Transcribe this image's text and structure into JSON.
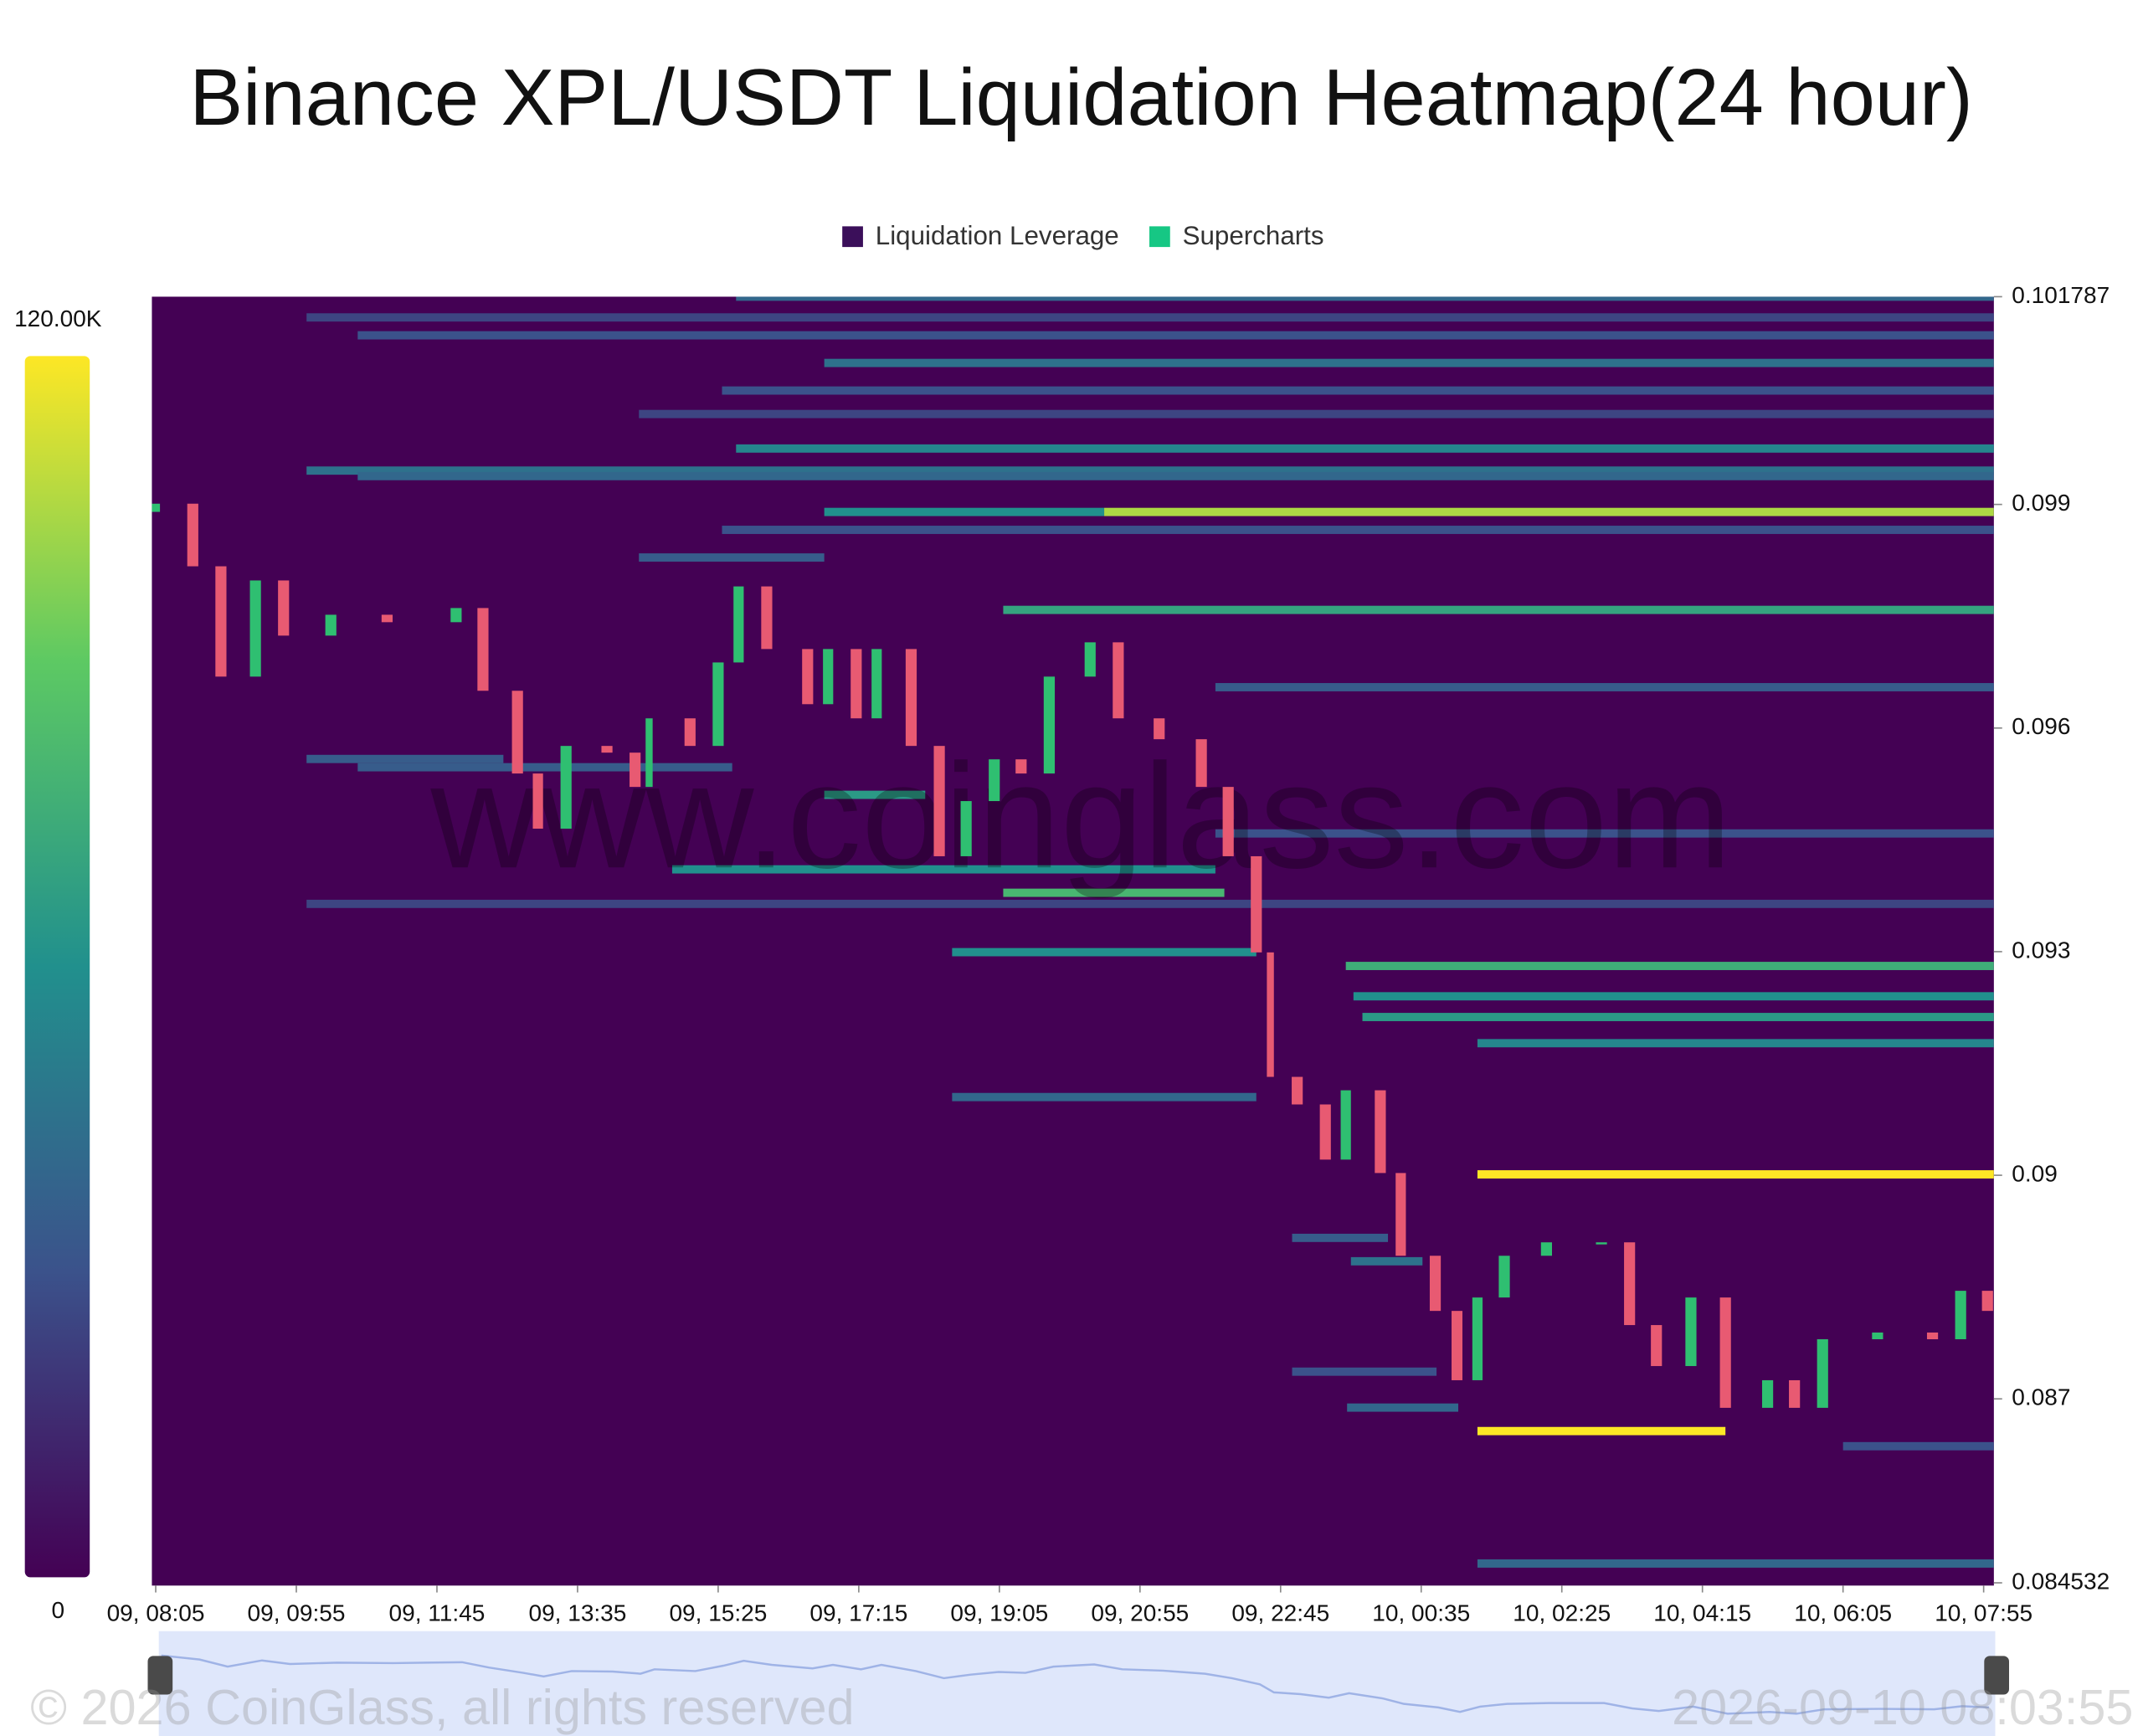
{
  "chart_data": {
    "type": "heatmap",
    "title": "Binance XPL/USDT Liquidation Heatmap(24 hour)",
    "legend": [
      {
        "name": "Liquidation Leverage",
        "color": "#3b0f5a"
      },
      {
        "name": "Supercharts",
        "color": "#16c784"
      }
    ],
    "legend_position": "top",
    "watermark": "www.coinglass.com",
    "footer": "© 2026 CoinGlass, all rights reserved",
    "timestamp": "2026-09-10 08:03:55",
    "background_color": "#440154",
    "colorscale": [
      "#440154",
      "#3b528b",
      "#21908d",
      "#5dc963",
      "#fde725"
    ],
    "colorlim": [
      0,
      120000
    ],
    "colorticks": [
      {
        "value": 120000,
        "label": "120.00K"
      },
      0
    ],
    "xlim": [
      482,
      1923
    ],
    "xticks": [
      {
        "value": 485,
        "label": "09, 08:05"
      },
      {
        "value": 595,
        "label": "09, 09:55"
      },
      {
        "value": 705,
        "label": "09, 11:45"
      },
      {
        "value": 815,
        "label": "09, 13:35"
      },
      {
        "value": 925,
        "label": "09, 15:25"
      },
      {
        "value": 1035,
        "label": "09, 17:15"
      },
      {
        "value": 1145,
        "label": "09, 19:05"
      },
      {
        "value": 1255,
        "label": "09, 20:55"
      },
      {
        "value": 1365,
        "label": "09, 22:45"
      },
      {
        "value": 1475,
        "label": "10, 00:35"
      },
      {
        "value": 1585,
        "label": "10, 02:25"
      },
      {
        "value": 1695,
        "label": "10, 04:15"
      },
      {
        "value": 1805,
        "label": "10, 06:05"
      },
      {
        "value": 1915,
        "label": "10, 07:55"
      }
    ],
    "ylim": [
      0.084532,
      0.101787
    ],
    "yticks": [
      0.084532,
      0.087,
      0.09,
      0.093,
      0.096,
      0.099,
      0.101787
    ],
    "bands": [
      {
        "price": 0.101787,
        "start": 939,
        "end": 1923,
        "value": 40000
      },
      {
        "price": 0.101509,
        "start": 603,
        "end": 1923,
        "value": 25000
      },
      {
        "price": 0.101269,
        "start": 643,
        "end": 1923,
        "value": 30000
      },
      {
        "price": 0.100898,
        "start": 1008,
        "end": 1923,
        "value": 45000
      },
      {
        "price": 0.100528,
        "start": 928,
        "end": 1923,
        "value": 30000
      },
      {
        "price": 0.100213,
        "start": 863,
        "end": 1923,
        "value": 25000
      },
      {
        "price": 0.09975,
        "start": 939,
        "end": 1923,
        "value": 55000
      },
      {
        "price": 0.099454,
        "start": 603,
        "end": 1923,
        "value": 45000
      },
      {
        "price": 0.09938,
        "start": 643,
        "end": 1923,
        "value": 40000
      },
      {
        "price": 0.098899,
        "start": 1008,
        "end": 1227,
        "value": 60000
      },
      {
        "price": 0.098899,
        "start": 1227,
        "end": 1923,
        "value": 105000
      },
      {
        "price": 0.098659,
        "start": 928,
        "end": 1923,
        "value": 30000
      },
      {
        "price": 0.098288,
        "start": 863,
        "end": 1008,
        "value": 35000
      },
      {
        "price": 0.097585,
        "start": 1148,
        "end": 1923,
        "value": 70000
      },
      {
        "price": 0.096548,
        "start": 1314,
        "end": 1923,
        "value": 35000
      },
      {
        "price": 0.095585,
        "start": 603,
        "end": 757,
        "value": 35000
      },
      {
        "price": 0.095474,
        "start": 643,
        "end": 936,
        "value": 35000
      },
      {
        "price": 0.095104,
        "start": 1008,
        "end": 1087,
        "value": 65000
      },
      {
        "price": 0.094586,
        "start": 1314,
        "end": 1923,
        "value": 30000
      },
      {
        "price": 0.094104,
        "start": 889,
        "end": 1314,
        "value": 60000
      },
      {
        "price": 0.09379,
        "start": 1148,
        "end": 1321,
        "value": 80000
      },
      {
        "price": 0.093641,
        "start": 603,
        "end": 1923,
        "value": 25000
      },
      {
        "price": 0.092993,
        "start": 1108,
        "end": 1346,
        "value": 60000
      },
      {
        "price": 0.092808,
        "start": 1416,
        "end": 1923,
        "value": 75000
      },
      {
        "price": 0.092401,
        "start": 1422,
        "end": 1923,
        "value": 60000
      },
      {
        "price": 0.092123,
        "start": 1429,
        "end": 1923,
        "value": 65000
      },
      {
        "price": 0.091772,
        "start": 1519,
        "end": 1923,
        "value": 55000
      },
      {
        "price": 0.091049,
        "start": 1108,
        "end": 1346,
        "value": 40000
      },
      {
        "price": 0.090012,
        "start": 1519,
        "end": 1923,
        "value": 120000
      },
      {
        "price": 0.08916,
        "start": 1374,
        "end": 1449,
        "value": 35000
      },
      {
        "price": 0.088846,
        "start": 1420,
        "end": 1476,
        "value": 45000
      },
      {
        "price": 0.087365,
        "start": 1374,
        "end": 1487,
        "value": 30000
      },
      {
        "price": 0.086883,
        "start": 1417,
        "end": 1504,
        "value": 40000
      },
      {
        "price": 0.086568,
        "start": 1519,
        "end": 1713,
        "value": 120000
      },
      {
        "price": 0.086365,
        "start": 1805,
        "end": 1923,
        "value": 30000
      },
      {
        "price": 0.084791,
        "start": 1519,
        "end": 1923,
        "value": 40000
      }
    ],
    "candles": {
      "up_color": "#2fbf71",
      "down_color": "#e85a72",
      "x": [
        484,
        514,
        536,
        563,
        585,
        622,
        666,
        720,
        741,
        768,
        784,
        806,
        838,
        860,
        871,
        903,
        925,
        941,
        963,
        995,
        1011,
        1033,
        1049,
        1076,
        1098,
        1119,
        1141,
        1162,
        1184,
        1216,
        1238,
        1270,
        1303,
        1324,
        1346,
        1357,
        1378,
        1400,
        1416,
        1443,
        1459,
        1486,
        1503,
        1519,
        1540,
        1573,
        1616,
        1638,
        1659,
        1686,
        1713,
        1746,
        1767,
        1789,
        1832,
        1875,
        1897,
        1918
      ],
      "open": [
        0.0989,
        0.09901,
        0.09817,
        0.09669,
        0.09798,
        0.09724,
        0.09752,
        0.09742,
        0.09761,
        0.0965,
        0.09539,
        0.09465,
        0.09576,
        0.09567,
        0.09521,
        0.09613,
        0.09576,
        0.09688,
        0.0979,
        0.09706,
        0.09632,
        0.09706,
        0.09613,
        0.09706,
        0.09576,
        0.09428,
        0.09502,
        0.09558,
        0.09539,
        0.09669,
        0.09715,
        0.09613,
        0.09585,
        0.09521,
        0.09428,
        0.09299,
        0.09132,
        0.09095,
        0.09021,
        0.09114,
        0.09003,
        0.08892,
        0.08818,
        0.08725,
        0.08836,
        0.08892,
        0.0891,
        0.0891,
        0.08799,
        0.08744,
        0.08836,
        0.08688,
        0.08725,
        0.08688,
        0.0878,
        0.08789,
        0.0878,
        0.08845
      ],
      "close": [
        0.09901,
        0.09817,
        0.09669,
        0.09798,
        0.09724,
        0.09752,
        0.09742,
        0.09761,
        0.0965,
        0.09539,
        0.09465,
        0.09576,
        0.09567,
        0.09521,
        0.09613,
        0.09576,
        0.09688,
        0.0979,
        0.09706,
        0.09632,
        0.09706,
        0.09613,
        0.09706,
        0.09576,
        0.09428,
        0.09502,
        0.09558,
        0.09539,
        0.09669,
        0.09715,
        0.09613,
        0.09585,
        0.09521,
        0.09428,
        0.09299,
        0.09132,
        0.09095,
        0.09021,
        0.09114,
        0.09003,
        0.08892,
        0.08818,
        0.08725,
        0.08836,
        0.08892,
        0.0891,
        0.0891,
        0.08799,
        0.08744,
        0.08836,
        0.08688,
        0.08725,
        0.08688,
        0.0878,
        0.08789,
        0.0878,
        0.08845,
        0.08818
      ]
    }
  }
}
